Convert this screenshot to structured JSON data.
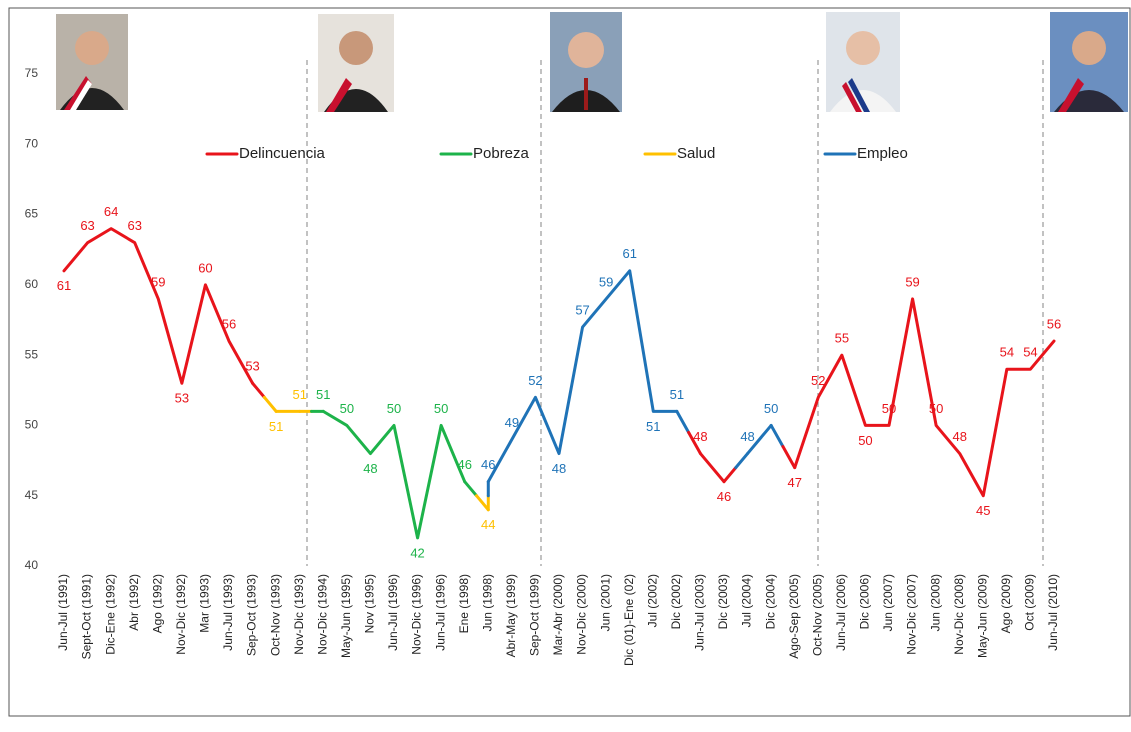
{
  "chart_data": {
    "type": "line",
    "categories": [
      "Jun-Jul (1991)",
      "Sept-Oct (1991)",
      "Dic-Ene (1992)",
      "Abr (1992)",
      "Ago (1992)",
      "Nov-Dic (1992)",
      "Mar (1993)",
      "Jun-Jul (1993)",
      "Sep-Oct (1993)",
      "Oct-Nov (1993)",
      "Nov-Dic (1993)",
      "Nov-Dic (1994)",
      "May-Jun (1995)",
      "Nov (1995)",
      "Jun-Jul (1996)",
      "Nov-Dic (1996)",
      "Jun-Jul (1996)",
      "Ene (1998)",
      "Jun (1998)",
      "Abr-May (1999)",
      "Sep-Oct (1999)",
      "Mar-Abr (2000)",
      "Nov-Dic (2000)",
      "Jun (2001)",
      "Dic (01)-Ene (02)",
      "Jul (2002)",
      "Dic (2002)",
      "Jun-Jul (2003)",
      "Dic (2003)",
      "Jul (2004)",
      "Dic (2004)",
      "Ago-Sep (2005)",
      "Oct-Nov (2005)",
      "Jun-Jul (2006)",
      "Dic (2006)",
      "Jun (2007)",
      "Nov-Dic (2007)",
      "Jun (2008)",
      "Nov-Dic (2008)",
      "May-Jun (2009)",
      "Ago (2009)",
      "Oct (2009)",
      "Jun-Jul (2010)"
    ],
    "series": [
      {
        "name": "Delincuencia",
        "color": "#e8141b",
        "values": [
          61,
          63,
          64,
          63,
          59,
          53,
          60,
          56,
          53,
          null,
          null,
          null,
          null,
          null,
          null,
          null,
          null,
          null,
          null,
          null,
          null,
          null,
          null,
          null,
          null,
          null,
          null,
          48,
          46,
          null,
          null,
          47,
          52,
          55,
          50,
          50,
          59,
          50,
          48,
          45,
          54,
          54,
          56
        ]
      },
      {
        "name": "Pobreza",
        "color": "#1db34a",
        "values": [
          null,
          null,
          null,
          null,
          null,
          null,
          null,
          null,
          null,
          null,
          null,
          51,
          50,
          48,
          50,
          42,
          50,
          46,
          null,
          null,
          null,
          null,
          null,
          null,
          null,
          null,
          null,
          null,
          null,
          null,
          null,
          null,
          null,
          null,
          null,
          null,
          null,
          null,
          null,
          null,
          null,
          null,
          null
        ]
      },
      {
        "name": "Salud",
        "color": "#ffc000",
        "values": [
          null,
          null,
          null,
          null,
          null,
          null,
          null,
          null,
          null,
          51,
          51,
          null,
          null,
          null,
          null,
          null,
          null,
          null,
          44,
          null,
          null,
          null,
          null,
          null,
          null,
          null,
          null,
          null,
          null,
          null,
          null,
          null,
          null,
          null,
          null,
          null,
          null,
          null,
          null,
          null,
          null,
          null,
          null
        ]
      },
      {
        "name": "Empleo",
        "color": "#1f73b7",
        "values": [
          null,
          null,
          null,
          null,
          null,
          null,
          null,
          null,
          null,
          null,
          null,
          null,
          null,
          null,
          null,
          null,
          null,
          null,
          46,
          49,
          52,
          48,
          57,
          59,
          61,
          51,
          51,
          null,
          null,
          48,
          50,
          null,
          null,
          null,
          null,
          null,
          null,
          null,
          null,
          null,
          null,
          null,
          null
        ]
      }
    ],
    "ylim": [
      40,
      75
    ],
    "yticks": [
      40,
      45,
      50,
      55,
      60,
      65,
      70,
      75
    ],
    "grid": false
  }
}
